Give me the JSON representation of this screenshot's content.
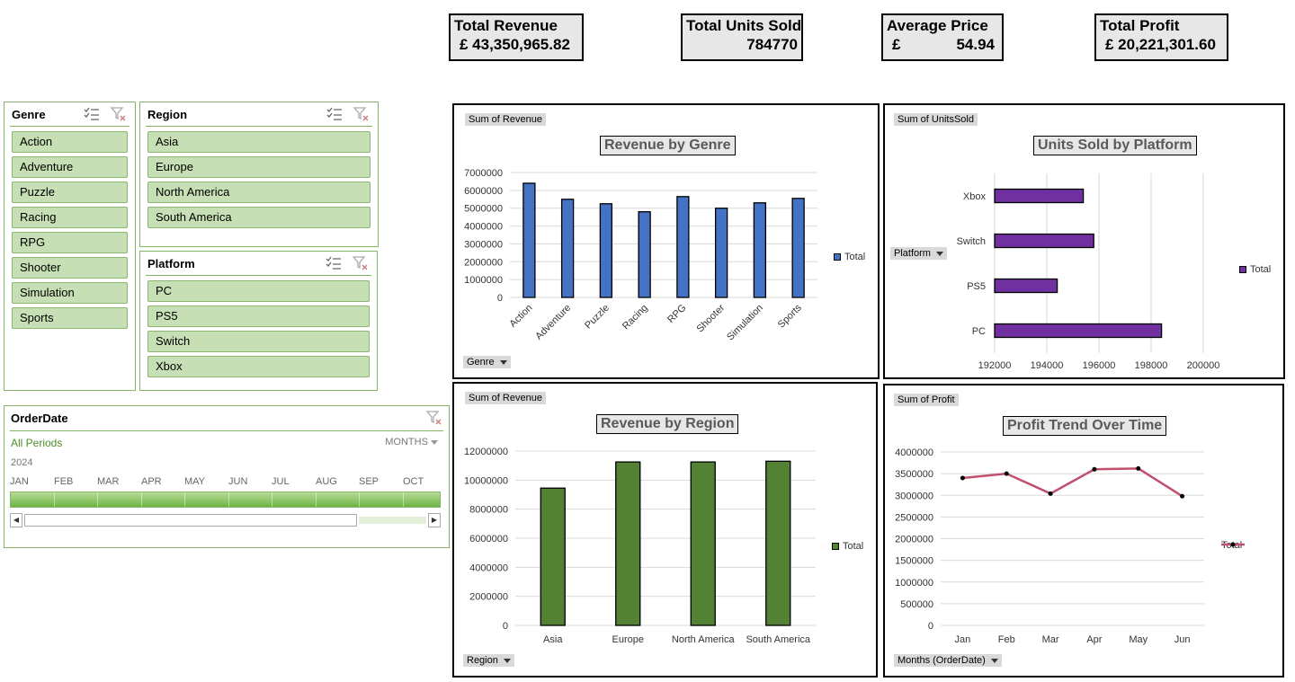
{
  "kpis": {
    "total_revenue": {
      "title": "Total Revenue",
      "value": "£ 43,350,965.82"
    },
    "total_units": {
      "title": "Total Units Sold",
      "value": "784770"
    },
    "avg_price": {
      "title": "Average Price",
      "currency": "£",
      "value": "54.94"
    },
    "total_profit": {
      "title": "Total Profit",
      "value": "£ 20,221,301.60"
    }
  },
  "slicers": {
    "genre": {
      "title": "Genre",
      "items": [
        "Action",
        "Adventure",
        "Puzzle",
        "Racing",
        "RPG",
        "Shooter",
        "Simulation",
        "Sports"
      ]
    },
    "region": {
      "title": "Region",
      "items": [
        "Asia",
        "Europe",
        "North America",
        "South America"
      ]
    },
    "platform": {
      "title": "Platform",
      "items": [
        "PC",
        "PS5",
        "Switch",
        "Xbox"
      ]
    }
  },
  "timeline": {
    "title": "OrderDate",
    "periods": "All Periods",
    "level": "MONTHS",
    "year": "2024",
    "months": [
      "JAN",
      "FEB",
      "MAR",
      "APR",
      "MAY",
      "JUN",
      "JUL",
      "AUG",
      "SEP",
      "OCT"
    ]
  },
  "colors": {
    "accent_green": "#82b466",
    "genre_bar": "#4472c4",
    "platform_bar": "#7030a0",
    "region_bar": "#548235",
    "profit_line": "#c0506e"
  },
  "icons": {
    "multi_select": "multi-select-icon",
    "clear_filter": "clear-filter-icon"
  },
  "chart_data": [
    {
      "id": "genre",
      "type": "bar",
      "title": "Revenue by Genre",
      "value_button": "Sum of Revenue",
      "axis_button": "Genre",
      "legend": "Total",
      "categories": [
        "Action",
        "Adventure",
        "Puzzle",
        "Racing",
        "RPG",
        "Shooter",
        "Simulation",
        "Sports"
      ],
      "values": [
        6400000,
        5500000,
        5250000,
        4800000,
        5650000,
        5000000,
        5300000,
        5550000
      ],
      "ylim": [
        0,
        7000000
      ],
      "yticks": [
        "0",
        "1000000",
        "2000000",
        "3000000",
        "4000000",
        "5000000",
        "6000000",
        "7000000"
      ]
    },
    {
      "id": "platform",
      "type": "bar",
      "orientation": "horizontal",
      "title": "Units Sold by Platform",
      "value_button": "Sum of UnitsSold",
      "axis_button": "Platform",
      "legend": "Total",
      "categories": [
        "PC",
        "PS5",
        "Switch",
        "Xbox"
      ],
      "values": [
        198400,
        194400,
        195800,
        195400
      ],
      "xlim": [
        192000,
        202000
      ],
      "xticks": [
        "192000",
        "194000",
        "196000",
        "198000",
        "200000"
      ]
    },
    {
      "id": "region",
      "type": "bar",
      "title": "Revenue by Region",
      "value_button": "Sum of Revenue",
      "axis_button": "Region",
      "legend": "Total",
      "categories": [
        "Asia",
        "Europe",
        "North America",
        "South America"
      ],
      "values": [
        9450000,
        11250000,
        11250000,
        11300000
      ],
      "ylim": [
        0,
        12000000
      ],
      "yticks": [
        "0",
        "2000000",
        "4000000",
        "6000000",
        "8000000",
        "10000000",
        "12000000"
      ]
    },
    {
      "id": "profit",
      "type": "line",
      "title": "Profit Trend Over Time",
      "value_button": "Sum of Profit",
      "axis_button": "Months (OrderDate)",
      "legend": "Total",
      "categories": [
        "Jan",
        "Feb",
        "Mar",
        "Apr",
        "May",
        "Jun"
      ],
      "values": [
        3400000,
        3500000,
        3040000,
        3600000,
        3620000,
        2980000
      ],
      "ylim": [
        0,
        4000000
      ],
      "yticks": [
        "0",
        "500000",
        "1000000",
        "1500000",
        "2000000",
        "2500000",
        "3000000",
        "3500000",
        "4000000"
      ]
    }
  ]
}
